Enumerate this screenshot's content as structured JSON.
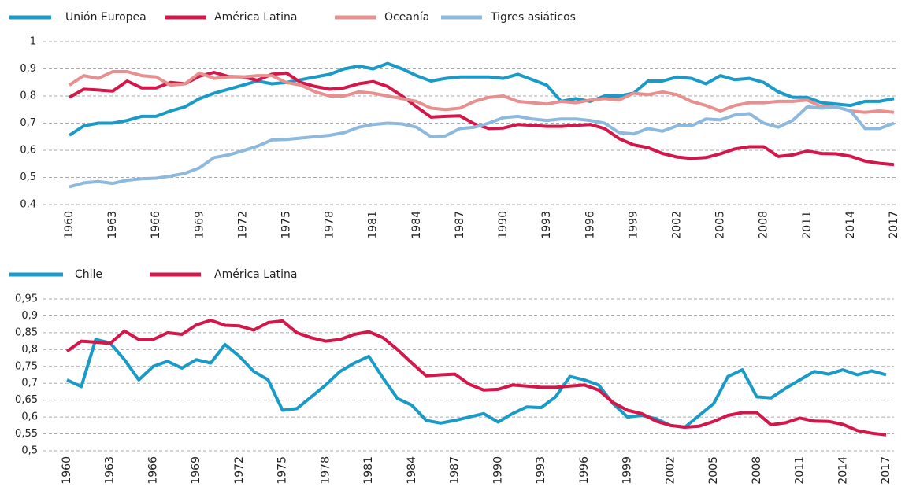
{
  "chart_data": [
    {
      "type": "line",
      "x": [
        1960,
        1961,
        1962,
        1963,
        1964,
        1965,
        1966,
        1967,
        1968,
        1969,
        1970,
        1971,
        1972,
        1973,
        1974,
        1975,
        1976,
        1977,
        1978,
        1979,
        1980,
        1981,
        1982,
        1983,
        1984,
        1985,
        1986,
        1987,
        1988,
        1989,
        1990,
        1991,
        1992,
        1993,
        1994,
        1995,
        1996,
        1997,
        1998,
        1999,
        2000,
        2001,
        2002,
        2003,
        2004,
        2005,
        2006,
        2007,
        2008,
        2009,
        2010,
        2011,
        2012,
        2013,
        2014,
        2015,
        2016,
        2017
      ],
      "xlim": [
        1960,
        2017
      ],
      "xticks": [
        1960,
        1963,
        1966,
        1969,
        1972,
        1975,
        1978,
        1981,
        1984,
        1987,
        1990,
        1993,
        1996,
        1999,
        2002,
        2005,
        2008,
        2011,
        2014,
        2017
      ],
      "ylim": [
        0.4,
        1
      ],
      "yticks": [
        {
          "value": 0.4,
          "label": "0,4"
        },
        {
          "value": 0.5,
          "label": "0,5"
        },
        {
          "value": 0.6,
          "label": "0,6"
        },
        {
          "value": 0.7,
          "label": "0,7"
        },
        {
          "value": 0.8,
          "label": "0,8"
        },
        {
          "value": 0.9,
          "label": "0,9"
        },
        1
      ],
      "grid": true,
      "series": [
        {
          "name": "Unión Europea",
          "color": "#1a9bc7",
          "values": [
            0.655,
            0.69,
            0.7,
            0.7,
            0.71,
            0.725,
            0.725,
            0.745,
            0.76,
            0.79,
            0.81,
            0.825,
            0.84,
            0.855,
            0.845,
            0.85,
            0.86,
            0.87,
            0.88,
            0.9,
            0.91,
            0.9,
            0.92,
            0.9,
            0.875,
            0.855,
            0.865,
            0.87,
            0.87,
            0.87,
            0.865,
            0.88,
            0.86,
            0.84,
            0.78,
            0.79,
            0.78,
            0.8,
            0.8,
            0.81,
            0.855,
            0.855,
            0.87,
            0.865,
            0.845,
            0.875,
            0.86,
            0.865,
            0.85,
            0.815,
            0.795,
            0.795,
            0.775,
            0.77,
            0.765,
            0.78,
            0.78,
            0.79
          ]
        },
        {
          "name": "América Latina",
          "color": "#d4174a",
          "values": [
            0.795,
            0.825,
            0.822,
            0.818,
            0.855,
            0.83,
            0.83,
            0.85,
            0.845,
            0.873,
            0.887,
            0.872,
            0.87,
            0.858,
            0.88,
            0.885,
            0.85,
            0.835,
            0.825,
            0.83,
            0.845,
            0.853,
            0.835,
            0.8,
            0.76,
            0.722,
            0.725,
            0.727,
            0.697,
            0.68,
            0.682,
            0.695,
            0.692,
            0.688,
            0.688,
            0.692,
            0.695,
            0.68,
            0.643,
            0.62,
            0.61,
            0.588,
            0.575,
            0.57,
            0.573,
            0.587,
            0.605,
            0.613,
            0.613,
            0.577,
            0.583,
            0.597,
            0.588,
            0.587,
            0.578,
            0.56,
            0.552,
            0.547
          ]
        },
        {
          "name": "Oceanía",
          "color": "#e8908f",
          "values": [
            0.84,
            0.875,
            0.865,
            0.89,
            0.89,
            0.875,
            0.87,
            0.84,
            0.845,
            0.885,
            0.865,
            0.87,
            0.87,
            0.875,
            0.875,
            0.85,
            0.84,
            0.815,
            0.8,
            0.8,
            0.815,
            0.81,
            0.8,
            0.79,
            0.78,
            0.755,
            0.75,
            0.755,
            0.78,
            0.795,
            0.8,
            0.78,
            0.775,
            0.77,
            0.78,
            0.775,
            0.785,
            0.79,
            0.785,
            0.81,
            0.805,
            0.815,
            0.805,
            0.78,
            0.765,
            0.745,
            0.765,
            0.775,
            0.775,
            0.78,
            0.78,
            0.785,
            0.76,
            0.76,
            0.745,
            0.74,
            0.745,
            0.74
          ]
        },
        {
          "name": "Tigres asiáticos",
          "color": "#8db9de",
          "values": [
            0.465,
            0.48,
            0.485,
            0.478,
            0.49,
            0.495,
            0.497,
            0.505,
            0.515,
            0.535,
            0.573,
            0.583,
            0.598,
            0.615,
            0.638,
            0.64,
            0.645,
            0.65,
            0.655,
            0.665,
            0.685,
            0.695,
            0.7,
            0.697,
            0.685,
            0.65,
            0.653,
            0.68,
            0.685,
            0.7,
            0.72,
            0.725,
            0.715,
            0.71,
            0.715,
            0.715,
            0.71,
            0.7,
            0.665,
            0.66,
            0.68,
            0.67,
            0.69,
            0.69,
            0.715,
            0.712,
            0.73,
            0.735,
            0.7,
            0.685,
            0.71,
            0.76,
            0.755,
            0.76,
            0.745,
            0.68,
            0.68,
            0.7
          ]
        }
      ]
    },
    {
      "type": "line",
      "x": [
        1960,
        1961,
        1962,
        1963,
        1964,
        1965,
        1966,
        1967,
        1968,
        1969,
        1970,
        1971,
        1972,
        1973,
        1974,
        1975,
        1976,
        1977,
        1978,
        1979,
        1980,
        1981,
        1982,
        1983,
        1984,
        1985,
        1986,
        1987,
        1988,
        1989,
        1990,
        1991,
        1992,
        1993,
        1994,
        1995,
        1996,
        1997,
        1998,
        1999,
        2000,
        2001,
        2002,
        2003,
        2004,
        2005,
        2006,
        2007,
        2008,
        2009,
        2010,
        2011,
        2012,
        2013,
        2014,
        2015,
        2016,
        2017
      ],
      "xlim": [
        1960,
        2017
      ],
      "xticks": [
        1960,
        1963,
        1966,
        1969,
        1972,
        1975,
        1978,
        1981,
        1984,
        1987,
        1990,
        1993,
        1996,
        1999,
        2002,
        2005,
        2008,
        2011,
        2014,
        2017
      ],
      "ylim": [
        0.5,
        0.95
      ],
      "yticks": [
        {
          "value": 0.5,
          "label": "0,5"
        },
        {
          "value": 0.55,
          "label": "0,55"
        },
        {
          "value": 0.6,
          "label": "0,6"
        },
        {
          "value": 0.65,
          "label": "0,65"
        },
        {
          "value": 0.7,
          "label": "0,7"
        },
        {
          "value": 0.75,
          "label": "0,75"
        },
        {
          "value": 0.8,
          "label": "0,8"
        },
        {
          "value": 0.85,
          "label": "0,85"
        },
        {
          "value": 0.9,
          "label": "0,9"
        },
        {
          "value": 0.95,
          "label": "0,95"
        }
      ],
      "grid": true,
      "series": [
        {
          "name": "Chile",
          "color": "#1a9bc7",
          "values": [
            0.71,
            0.69,
            0.83,
            0.82,
            0.77,
            0.71,
            0.75,
            0.765,
            0.745,
            0.77,
            0.76,
            0.815,
            0.78,
            0.735,
            0.71,
            0.62,
            0.625,
            0.66,
            0.695,
            0.735,
            0.76,
            0.78,
            0.715,
            0.655,
            0.635,
            0.59,
            0.582,
            0.59,
            0.6,
            0.61,
            0.585,
            0.61,
            0.63,
            0.628,
            0.66,
            0.72,
            0.71,
            0.695,
            0.64,
            0.6,
            0.605,
            0.595,
            0.575,
            0.57,
            0.605,
            0.64,
            0.72,
            0.74,
            0.66,
            0.657,
            0.685,
            0.71,
            0.735,
            0.727,
            0.74,
            0.725,
            0.737,
            0.725
          ]
        },
        {
          "name": "América Latina",
          "color": "#d4174a",
          "values": [
            0.795,
            0.825,
            0.822,
            0.818,
            0.855,
            0.83,
            0.83,
            0.85,
            0.845,
            0.873,
            0.887,
            0.872,
            0.87,
            0.858,
            0.88,
            0.885,
            0.85,
            0.835,
            0.825,
            0.83,
            0.845,
            0.853,
            0.835,
            0.8,
            0.76,
            0.722,
            0.725,
            0.727,
            0.697,
            0.68,
            0.682,
            0.695,
            0.692,
            0.688,
            0.688,
            0.692,
            0.695,
            0.68,
            0.643,
            0.62,
            0.61,
            0.588,
            0.575,
            0.57,
            0.573,
            0.587,
            0.605,
            0.613,
            0.613,
            0.577,
            0.583,
            0.597,
            0.588,
            0.587,
            0.578,
            0.56,
            0.552,
            0.547
          ]
        }
      ]
    }
  ]
}
